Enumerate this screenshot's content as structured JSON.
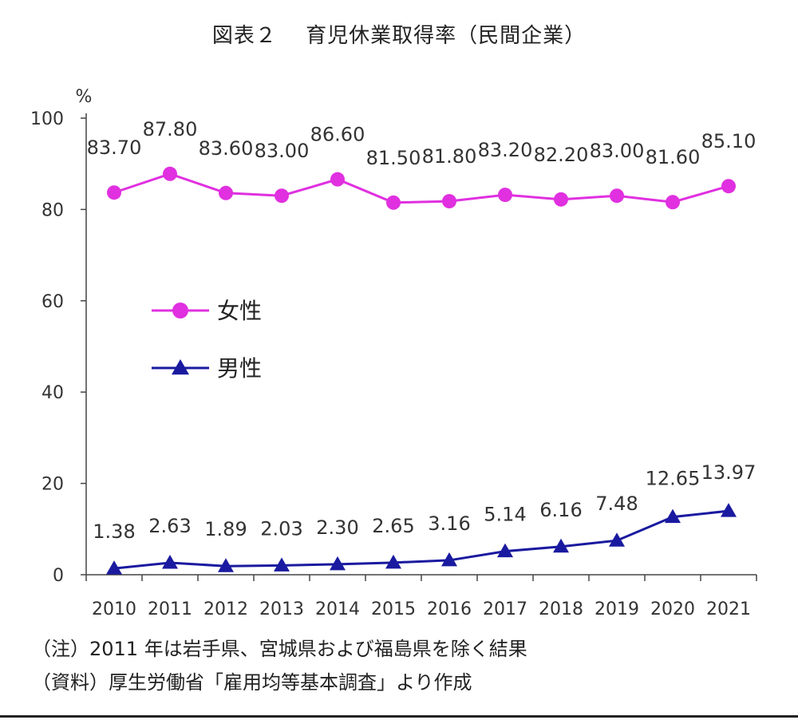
{
  "chart_data": {
    "type": "line",
    "title": "図表２　 育児休業取得率（民間企業）",
    "ylabel": "%",
    "xlabel": "",
    "ylim": [
      0,
      100
    ],
    "yticks": [
      0,
      20,
      40,
      60,
      80,
      100
    ],
    "grid": false,
    "legend": "center-left",
    "categories": [
      "2010",
      "2011",
      "2012",
      "2013",
      "2014",
      "2015",
      "2016",
      "2017",
      "2018",
      "2019",
      "2020",
      "2021"
    ],
    "series": [
      {
        "name": "女性",
        "marker": "circle",
        "color": "#e030e0",
        "values": [
          83.7,
          87.8,
          83.6,
          83.0,
          86.6,
          81.5,
          81.8,
          83.2,
          82.2,
          83.0,
          81.6,
          85.1
        ],
        "labels": [
          "83.70",
          "87.80",
          "83.60",
          "83.00",
          "86.60",
          "81.50",
          "81.80",
          "83.20",
          "82.20",
          "83.00",
          "81.60",
          "85.10"
        ]
      },
      {
        "name": "男性",
        "marker": "triangle",
        "color": "#1a1aa0",
        "values": [
          1.38,
          2.63,
          1.89,
          2.03,
          2.3,
          2.65,
          3.16,
          5.14,
          6.16,
          7.48,
          12.65,
          13.97
        ],
        "labels": [
          "1.38",
          "2.63",
          "1.89",
          "2.03",
          "2.30",
          "2.65",
          "3.16",
          "5.14",
          "6.16",
          "7.48",
          "12.65",
          "13.97"
        ]
      }
    ]
  },
  "notes": {
    "note1": "（注）2011 年は岩手県、宮城県および福島県を除く結果",
    "note2": "（資料）厚生労働省「雇用均等基本調査」より作成"
  }
}
